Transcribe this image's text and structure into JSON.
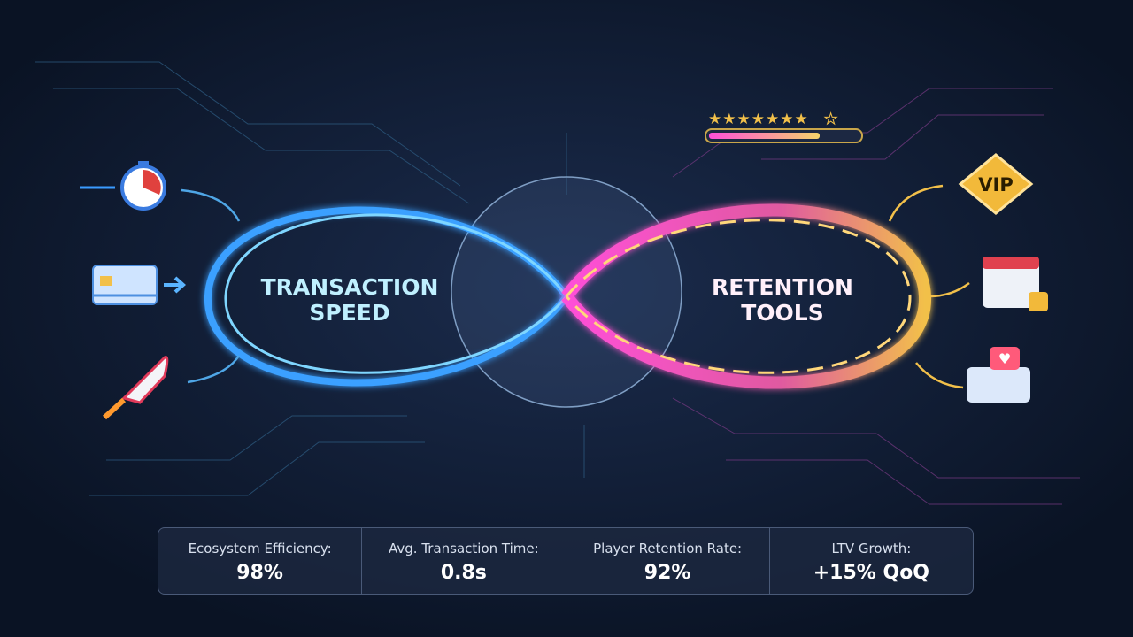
{
  "left_label": {
    "lines": [
      "TRANSACTION",
      "SPEED"
    ]
  },
  "right_label": {
    "lines": [
      "RETENTION",
      "TOOLS"
    ]
  },
  "badge": "VIP",
  "stats": [
    {
      "label": "Ecosystem Efficiency:",
      "value": "98%"
    },
    {
      "label": "Avg. Transaction Time:",
      "value": "0.8s"
    },
    {
      "label": "Player Retention Rate:",
      "value": "92%"
    },
    {
      "label": "LTV Growth:",
      "value": "+15% QoQ"
    }
  ]
}
